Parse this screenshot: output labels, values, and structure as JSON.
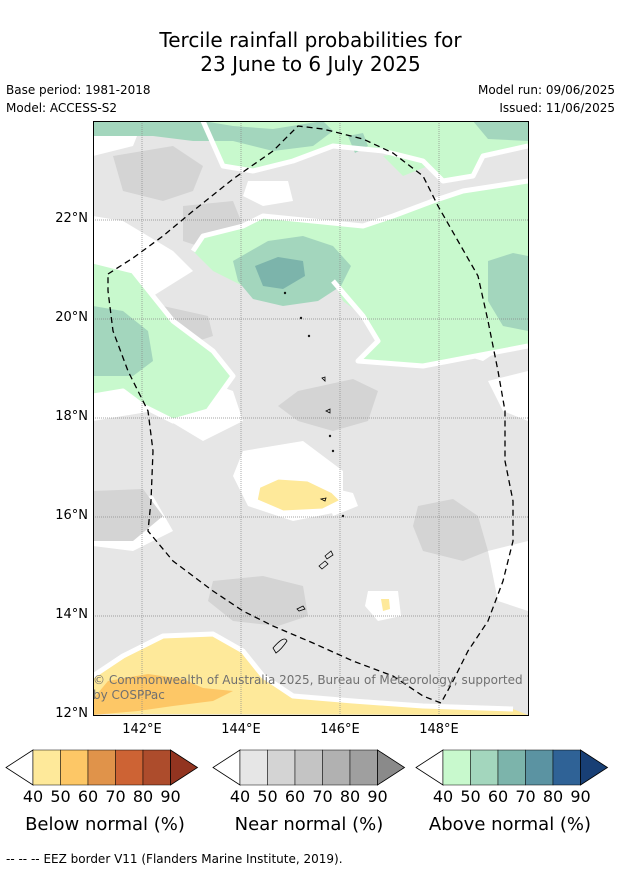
{
  "title_line1": "Tercile rainfall probabilities for",
  "title_line2": "23 June to 6 July 2025",
  "base_period": "Base period: 1981-2018",
  "model": "Model: ACCESS-S2",
  "model_run": "Model run: 09/06/2025",
  "issued": "Issued: 11/06/2025",
  "lat_labels": [
    "22°N",
    "20°N",
    "18°N",
    "16°N",
    "14°N",
    "12°N"
  ],
  "lon_labels": [
    "142°E",
    "144°E",
    "146°E",
    "148°E"
  ],
  "copyright": "© Commonwealth of Australia 2025, Bureau of Meteorology, supported by COSPPac",
  "colorbars": [
    {
      "title": "Below normal (%)",
      "ticks": [
        "40",
        "50",
        "60",
        "70",
        "80",
        "90"
      ],
      "colors": [
        "#fee99a",
        "#fdc766",
        "#e0934a",
        "#cd6334",
        "#ad4c2c",
        "#923420"
      ]
    },
    {
      "title": "Near normal (%)",
      "ticks": [
        "40",
        "50",
        "60",
        "70",
        "80",
        "90"
      ],
      "colors": [
        "#e6e6e6",
        "#d4d4d4",
        "#c4c4c4",
        "#b1b1b1",
        "#9f9f9f",
        "#8a8a8a"
      ]
    },
    {
      "title": "Above normal (%)",
      "ticks": [
        "40",
        "50",
        "60",
        "70",
        "80",
        "90"
      ],
      "colors": [
        "#c8f9cd",
        "#a3d6bd",
        "#7cb4ab",
        "#5b93a2",
        "#2f6296",
        "#183f75"
      ]
    }
  ],
  "legend_dashes": "--  --  --",
  "legend_text": "EEZ border V11 (Flanders Marine Institute, 2019)."
}
